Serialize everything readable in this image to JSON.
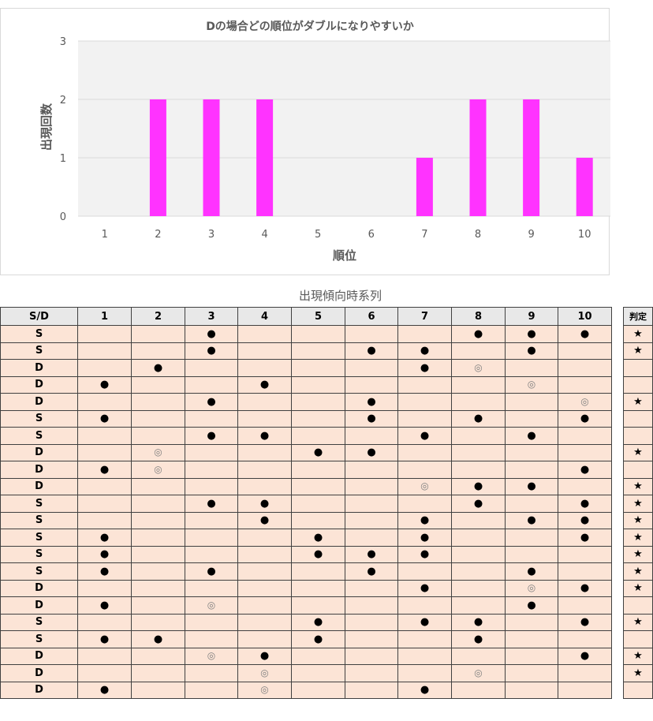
{
  "chart_data": {
    "type": "bar",
    "title": "Dの場合どの順位がダブルになりやすいか",
    "xlabel": "順位",
    "ylabel": "出現回数",
    "categories": [
      "1",
      "2",
      "3",
      "4",
      "5",
      "6",
      "7",
      "8",
      "9",
      "10"
    ],
    "values": [
      0,
      2,
      2,
      2,
      0,
      0,
      1,
      2,
      2,
      1
    ],
    "ylim": [
      0,
      3
    ],
    "yticks": [
      "0",
      "1",
      "2",
      "3"
    ],
    "bar_color": "#ff33ff",
    "plot_bg": "#f2f2f2",
    "grid": true
  },
  "table": {
    "caption": "出現傾向時系列",
    "headers": [
      "S/D",
      "1",
      "2",
      "3",
      "4",
      "5",
      "6",
      "7",
      "8",
      "9",
      "10"
    ],
    "judge_header": "判定",
    "marks": {
      "dot": "●",
      "ring": "◎",
      "star": "★"
    },
    "rows": [
      {
        "sd": "S",
        "cells": [
          "",
          "",
          "●",
          "",
          "",
          "",
          "",
          "●",
          "●",
          "●"
        ],
        "judge": "★"
      },
      {
        "sd": "S",
        "cells": [
          "",
          "",
          "●",
          "",
          "",
          "●",
          "●",
          "",
          "●",
          ""
        ],
        "judge": "★"
      },
      {
        "sd": "D",
        "cells": [
          "",
          "●",
          "",
          "",
          "",
          "",
          "●",
          "◎",
          "",
          ""
        ],
        "judge": ""
      },
      {
        "sd": "D",
        "cells": [
          "●",
          "",
          "",
          "●",
          "",
          "",
          "",
          "",
          "◎",
          ""
        ],
        "judge": ""
      },
      {
        "sd": "D",
        "cells": [
          "",
          "",
          "●",
          "",
          "",
          "●",
          "",
          "",
          "",
          "◎"
        ],
        "judge": "★"
      },
      {
        "sd": "S",
        "cells": [
          "●",
          "",
          "",
          "",
          "",
          "●",
          "",
          "●",
          "",
          "●"
        ],
        "judge": ""
      },
      {
        "sd": "S",
        "cells": [
          "",
          "",
          "●",
          "●",
          "",
          "",
          "●",
          "",
          "●",
          ""
        ],
        "judge": ""
      },
      {
        "sd": "D",
        "cells": [
          "",
          "◎",
          "",
          "",
          "●",
          "●",
          "",
          "",
          "",
          ""
        ],
        "judge": "★"
      },
      {
        "sd": "D",
        "cells": [
          "●",
          "◎",
          "",
          "",
          "",
          "",
          "",
          "",
          "",
          "●"
        ],
        "judge": ""
      },
      {
        "sd": "D",
        "cells": [
          "",
          "",
          "",
          "",
          "",
          "",
          "◎",
          "●",
          "●",
          ""
        ],
        "judge": "★"
      },
      {
        "sd": "S",
        "cells": [
          "",
          "",
          "●",
          "●",
          "",
          "",
          "",
          "●",
          "",
          "●"
        ],
        "judge": "★"
      },
      {
        "sd": "S",
        "cells": [
          "",
          "",
          "",
          "●",
          "",
          "",
          "●",
          "",
          "●",
          "●"
        ],
        "judge": "★"
      },
      {
        "sd": "S",
        "cells": [
          "●",
          "",
          "",
          "",
          "●",
          "",
          "●",
          "",
          "",
          "●"
        ],
        "judge": "★"
      },
      {
        "sd": "S",
        "cells": [
          "●",
          "",
          "",
          "",
          "●",
          "●",
          "●",
          "",
          "",
          ""
        ],
        "judge": "★"
      },
      {
        "sd": "S",
        "cells": [
          "●",
          "",
          "●",
          "",
          "",
          "●",
          "",
          "",
          "●",
          ""
        ],
        "judge": "★"
      },
      {
        "sd": "D",
        "cells": [
          "",
          "",
          "",
          "",
          "",
          "",
          "●",
          "",
          "◎",
          "●"
        ],
        "judge": "★"
      },
      {
        "sd": "D",
        "cells": [
          "●",
          "",
          "◎",
          "",
          "",
          "",
          "",
          "",
          "●",
          ""
        ],
        "judge": ""
      },
      {
        "sd": "S",
        "cells": [
          "",
          "",
          "",
          "",
          "●",
          "",
          "●",
          "●",
          "",
          "●"
        ],
        "judge": "★"
      },
      {
        "sd": "S",
        "cells": [
          "●",
          "●",
          "",
          "",
          "●",
          "",
          "",
          "●",
          "",
          ""
        ],
        "judge": ""
      },
      {
        "sd": "D",
        "cells": [
          "",
          "",
          "◎",
          "●",
          "",
          "",
          "",
          "",
          "",
          "●"
        ],
        "judge": "★"
      },
      {
        "sd": "D",
        "cells": [
          "",
          "",
          "",
          "◎",
          "",
          "",
          "",
          "◎",
          "",
          ""
        ],
        "judge": "★"
      },
      {
        "sd": "D",
        "cells": [
          "●",
          "",
          "",
          "◎",
          "",
          "",
          "●",
          "",
          "",
          ""
        ],
        "judge": ""
      }
    ]
  }
}
